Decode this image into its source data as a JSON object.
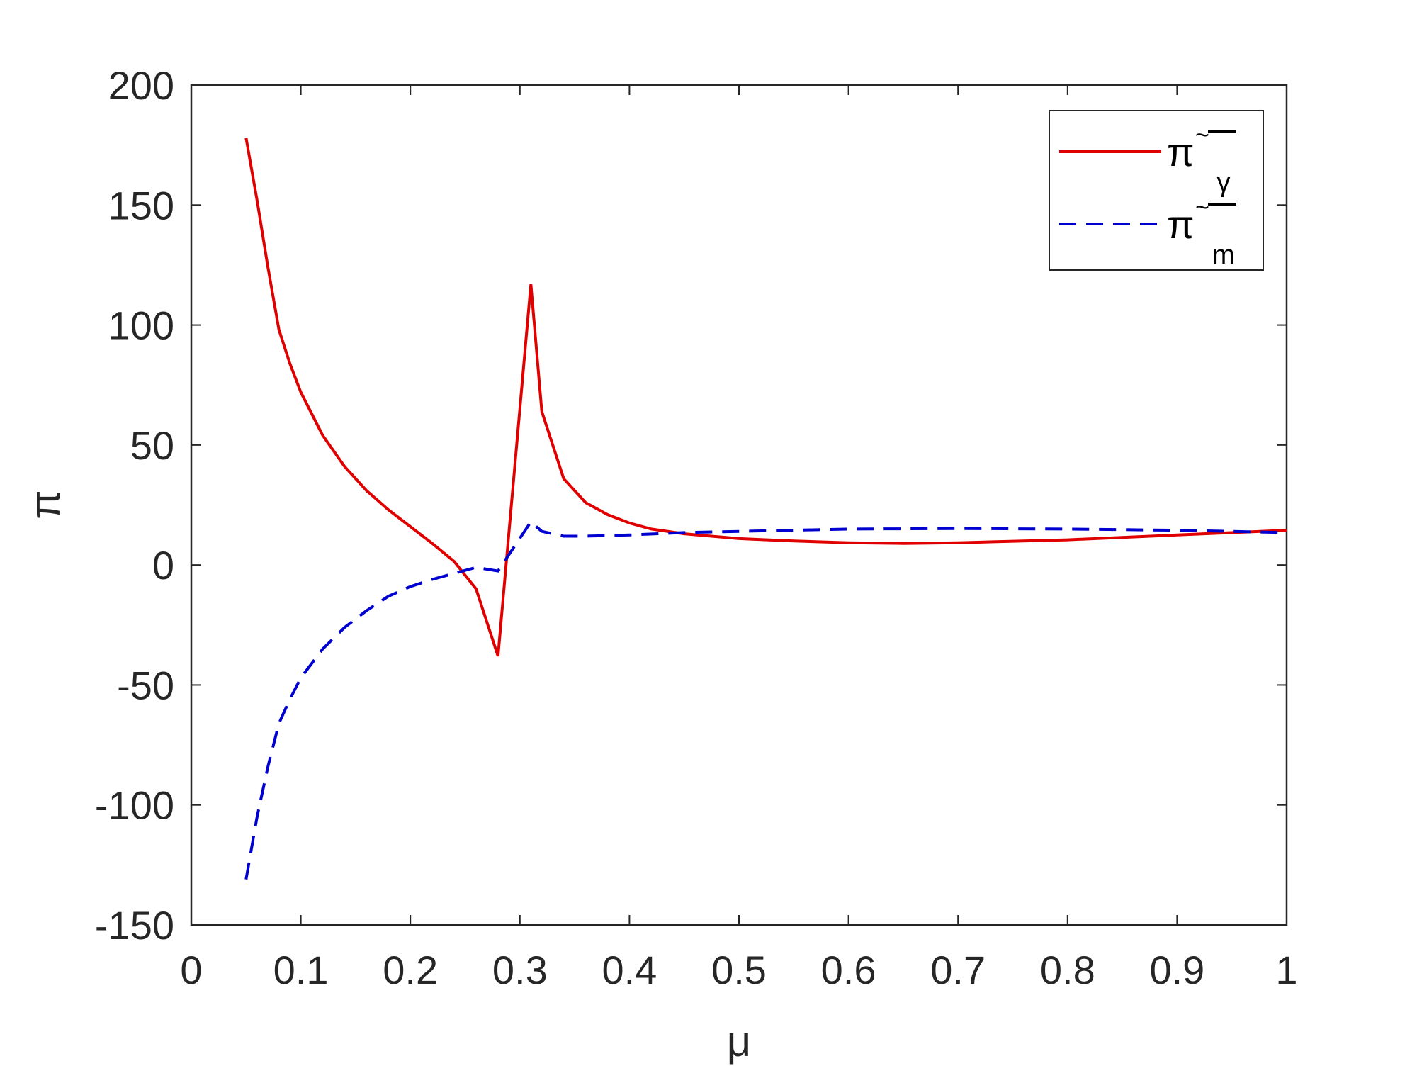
{
  "chart_data": {
    "type": "line",
    "xlabel": "μ",
    "ylabel": "π",
    "xlim": [
      0,
      1
    ],
    "ylim": [
      -150,
      200
    ],
    "xticks": [
      0,
      0.1,
      0.2,
      0.3,
      0.4,
      0.5,
      0.6,
      0.7,
      0.8,
      0.9,
      1
    ],
    "xtick_labels": [
      "0",
      "0.1",
      "0.2",
      "0.3",
      "0.4",
      "0.5",
      "0.6",
      "0.7",
      "0.8",
      "0.9",
      "1"
    ],
    "yticks": [
      -150,
      -100,
      -50,
      0,
      50,
      100,
      150,
      200
    ],
    "ytick_labels": [
      "-150",
      "-100",
      "-50",
      "0",
      "50",
      "100",
      "150",
      "200"
    ],
    "grid": false,
    "box": true,
    "legend_position": "top-right",
    "series": [
      {
        "name": "π̃‾γ",
        "legend_symbol": "π",
        "legend_accent": "~",
        "legend_subscript": "γ",
        "color": "#e00000",
        "style": "solid",
        "points": [
          [
            0.05,
            178
          ],
          [
            0.06,
            152
          ],
          [
            0.07,
            124
          ],
          [
            0.08,
            98
          ],
          [
            0.09,
            84
          ],
          [
            0.1,
            72
          ],
          [
            0.12,
            54
          ],
          [
            0.14,
            41
          ],
          [
            0.16,
            31
          ],
          [
            0.18,
            23
          ],
          [
            0.2,
            16
          ],
          [
            0.22,
            9
          ],
          [
            0.24,
            1.5
          ],
          [
            0.26,
            -10
          ],
          [
            0.28,
            -38
          ],
          [
            0.31,
            117
          ],
          [
            0.32,
            64
          ],
          [
            0.34,
            36
          ],
          [
            0.36,
            26
          ],
          [
            0.38,
            21
          ],
          [
            0.4,
            17.5
          ],
          [
            0.42,
            15
          ],
          [
            0.45,
            13
          ],
          [
            0.5,
            11
          ],
          [
            0.55,
            10
          ],
          [
            0.6,
            9.3
          ],
          [
            0.65,
            9
          ],
          [
            0.7,
            9.3
          ],
          [
            0.8,
            10.5
          ],
          [
            0.9,
            12.5
          ],
          [
            1.0,
            14.5
          ]
        ]
      },
      {
        "name": "π̃‾m",
        "legend_symbol": "π",
        "legend_accent": "~",
        "legend_subscript": "m",
        "color": "#0000d0",
        "style": "dashed",
        "points": [
          [
            0.05,
            -131
          ],
          [
            0.06,
            -105
          ],
          [
            0.07,
            -84
          ],
          [
            0.08,
            -66
          ],
          [
            0.09,
            -56
          ],
          [
            0.1,
            -47
          ],
          [
            0.12,
            -35
          ],
          [
            0.14,
            -26
          ],
          [
            0.16,
            -19
          ],
          [
            0.18,
            -13
          ],
          [
            0.2,
            -9
          ],
          [
            0.22,
            -6
          ],
          [
            0.24,
            -3.5
          ],
          [
            0.26,
            -1
          ],
          [
            0.28,
            -2.5
          ],
          [
            0.31,
            18
          ],
          [
            0.32,
            14
          ],
          [
            0.34,
            12
          ],
          [
            0.36,
            12
          ],
          [
            0.4,
            12.5
          ],
          [
            0.45,
            13.5
          ],
          [
            0.5,
            14
          ],
          [
            0.6,
            15
          ],
          [
            0.7,
            15.2
          ],
          [
            0.8,
            15
          ],
          [
            0.9,
            14.5
          ],
          [
            1.0,
            13.5
          ]
        ]
      }
    ]
  }
}
